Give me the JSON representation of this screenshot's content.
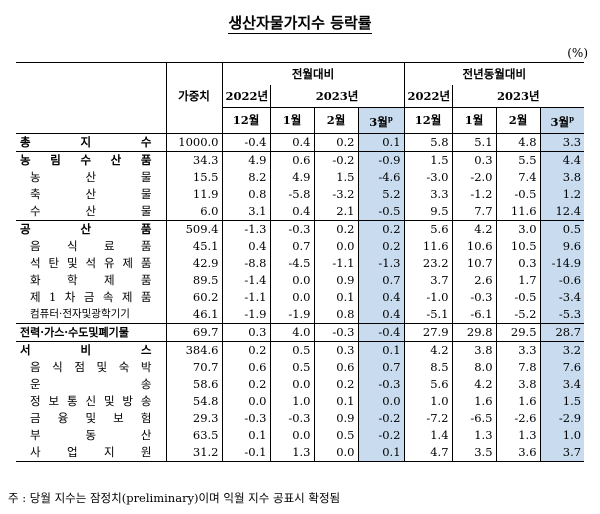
{
  "title": "생산자물가지수 등락률",
  "unit": "(%)",
  "header": {
    "weight": "가중치",
    "group_mom": "전월대비",
    "group_yoy": "전년동월대비",
    "year_2022": "2022년",
    "year_2023": "2023년",
    "months": [
      "12월",
      "1월",
      "2월",
      "3월"
    ],
    "prelim_mark": "p"
  },
  "rows": [
    {
      "label": "총   지   수",
      "style": "top",
      "weight": "1000.0",
      "mom": [
        "-0.4",
        "0.4",
        "0.2",
        "0.1"
      ],
      "yoy": [
        "5.8",
        "5.1",
        "4.8",
        "3.3"
      ]
    },
    {
      "label": "농 림 수 산 품",
      "style": "top",
      "weight": "34.3",
      "mom": [
        "4.9",
        "0.6",
        "-0.2",
        "-0.9"
      ],
      "yoy": [
        "1.5",
        "0.3",
        "5.5",
        "4.4"
      ]
    },
    {
      "label": "농   산   물",
      "style": "sub",
      "weight": "15.5",
      "mom": [
        "8.2",
        "4.9",
        "1.5",
        "-4.6"
      ],
      "yoy": [
        "-3.0",
        "-2.0",
        "7.4",
        "3.8"
      ]
    },
    {
      "label": "축   산   물",
      "style": "sub",
      "weight": "11.9",
      "mom": [
        "0.8",
        "-5.8",
        "-3.2",
        "5.2"
      ],
      "yoy": [
        "3.3",
        "-1.2",
        "-0.5",
        "1.2"
      ]
    },
    {
      "label": "수   산   물",
      "style": "sub",
      "weight": "6.0",
      "mom": [
        "3.1",
        "0.4",
        "2.1",
        "-0.5"
      ],
      "yoy": [
        "9.5",
        "7.7",
        "11.6",
        "12.4"
      ]
    },
    {
      "label": "공   산   품",
      "style": "top",
      "weight": "509.4",
      "mom": [
        "-1.3",
        "-0.3",
        "0.2",
        "0.2"
      ],
      "yoy": [
        "5.6",
        "4.2",
        "3.0",
        "0.5"
      ]
    },
    {
      "label": "음 식 료 품",
      "style": "sub",
      "weight": "45.1",
      "mom": [
        "0.4",
        "0.7",
        "0.0",
        "0.2"
      ],
      "yoy": [
        "11.6",
        "10.6",
        "10.5",
        "9.6"
      ]
    },
    {
      "label": "석 탄 및 석 유 제 품",
      "style": "sub",
      "weight": "42.9",
      "mom": [
        "-8.8",
        "-4.5",
        "-1.1",
        "-1.3"
      ],
      "yoy": [
        "23.2",
        "10.7",
        "0.3",
        "-14.9"
      ]
    },
    {
      "label": "화 학 제 품",
      "style": "sub",
      "weight": "89.5",
      "mom": [
        "-1.4",
        "0.0",
        "0.9",
        "0.7"
      ],
      "yoy": [
        "3.7",
        "2.6",
        "1.7",
        "-0.6"
      ]
    },
    {
      "label": "제 1 차 금 속 제 품",
      "style": "sub",
      "weight": "60.2",
      "mom": [
        "-1.1",
        "0.0",
        "0.1",
        "0.4"
      ],
      "yoy": [
        "-1.0",
        "-0.3",
        "-0.5",
        "-3.4"
      ]
    },
    {
      "label": "컴퓨터·전자및광학기기",
      "style": "subsmall",
      "weight": "46.1",
      "mom": [
        "-1.9",
        "-1.9",
        "0.8",
        "0.4"
      ],
      "yoy": [
        "-5.1",
        "-6.1",
        "-5.2",
        "-5.3"
      ]
    },
    {
      "label": "전력·가스·수도및폐기물",
      "style": "boldsmall",
      "weight": "69.7",
      "mom": [
        "0.3",
        "4.0",
        "-0.3",
        "-0.4"
      ],
      "yoy": [
        "27.9",
        "29.8",
        "29.5",
        "28.7"
      ]
    },
    {
      "label": "서   비   스",
      "style": "top",
      "weight": "384.6",
      "mom": [
        "0.2",
        "0.5",
        "0.3",
        "0.1"
      ],
      "yoy": [
        "4.2",
        "3.8",
        "3.3",
        "3.2"
      ]
    },
    {
      "label": "음 식 점 및 숙 박",
      "style": "sub",
      "weight": "70.7",
      "mom": [
        "0.6",
        "0.5",
        "0.6",
        "0.7"
      ],
      "yoy": [
        "8.5",
        "8.0",
        "7.8",
        "7.6"
      ]
    },
    {
      "label": "운   송",
      "style": "sub",
      "weight": "58.6",
      "mom": [
        "0.2",
        "0.0",
        "0.2",
        "-0.3"
      ],
      "yoy": [
        "5.6",
        "4.2",
        "3.8",
        "3.4"
      ]
    },
    {
      "label": "정 보 통 신 및 방 송",
      "style": "sub",
      "weight": "54.8",
      "mom": [
        "0.0",
        "1.0",
        "0.1",
        "0.0"
      ],
      "yoy": [
        "1.0",
        "1.6",
        "1.6",
        "1.5"
      ]
    },
    {
      "label": "금 융 및 보 험",
      "style": "sub",
      "weight": "29.3",
      "mom": [
        "-0.3",
        "-0.3",
        "0.9",
        "-0.2"
      ],
      "yoy": [
        "-7.2",
        "-6.5",
        "-2.6",
        "-2.9"
      ]
    },
    {
      "label": "부   동   산",
      "style": "sub",
      "weight": "63.5",
      "mom": [
        "0.1",
        "0.0",
        "0.5",
        "-0.2"
      ],
      "yoy": [
        "1.4",
        "1.3",
        "1.3",
        "1.0"
      ]
    },
    {
      "label": "사   업   지   원",
      "style": "sub",
      "weight": "31.2",
      "mom": [
        "-0.1",
        "1.3",
        "0.0",
        "0.1"
      ],
      "yoy": [
        "4.7",
        "3.5",
        "3.6",
        "3.7"
      ]
    }
  ],
  "footnote": "주 : 당월 지수는 잠정치(preliminary)이며 익월 지수 공표시 확정됨",
  "colors": {
    "highlight": "#c9dcef"
  }
}
